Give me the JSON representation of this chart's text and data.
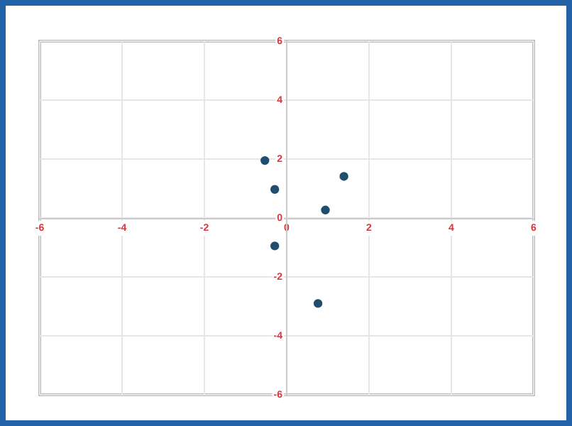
{
  "chart_data": {
    "type": "scatter",
    "x": [
      -0.53,
      -0.29,
      0.94,
      1.39,
      -0.29,
      0.76
    ],
    "values": [
      1.95,
      0.97,
      0.27,
      1.41,
      -0.95,
      -2.9
    ],
    "color": "#1f4e6e",
    "xlim": [
      -6,
      6
    ],
    "ylim": [
      -6,
      6
    ],
    "xticks": [
      -6,
      -4,
      -2,
      0,
      2,
      4,
      6
    ],
    "yticks": [
      -6,
      -4,
      -2,
      0,
      2,
      4,
      6
    ],
    "grid": true,
    "marker": "circle",
    "legend": false
  }
}
